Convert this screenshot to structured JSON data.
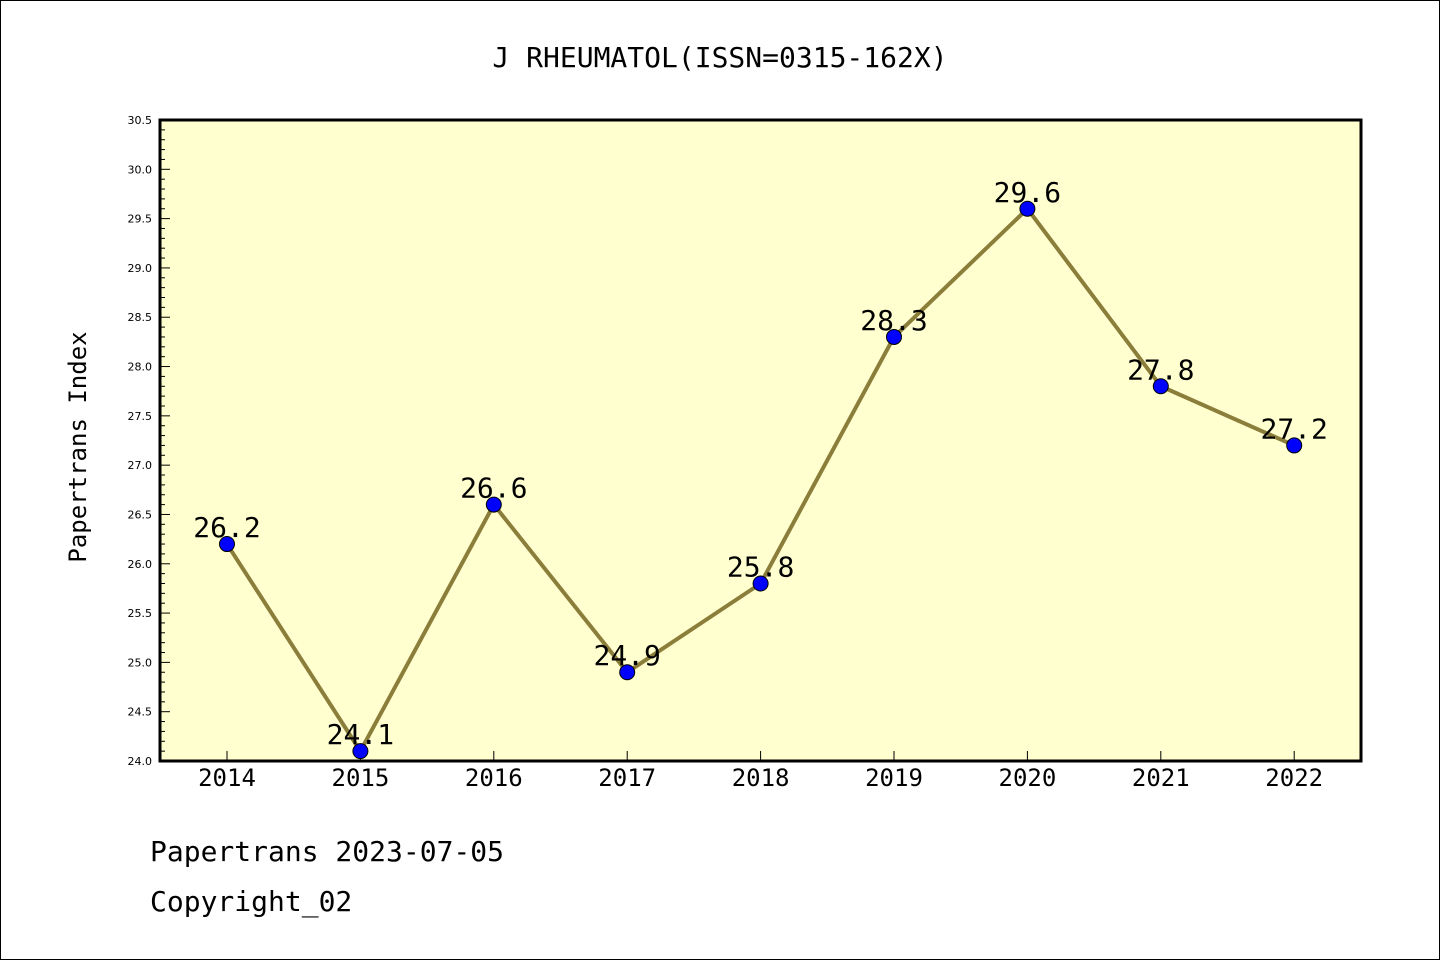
{
  "chart_data": {
    "type": "line",
    "title": "J RHEUMATOL(ISSN=0315-162X)",
    "xlabel": "",
    "ylabel": "Papertrans Index",
    "categories": [
      "2014",
      "2015",
      "2016",
      "2017",
      "2018",
      "2019",
      "2020",
      "2021",
      "2022"
    ],
    "series": [
      {
        "values": [
          26.2,
          24.1,
          26.6,
          24.9,
          25.8,
          28.3,
          29.6,
          27.8,
          27.2
        ],
        "data_labels": [
          "26.2",
          "24.1",
          "26.6",
          "24.9",
          "25.8",
          "28.3",
          "29.6",
          "27.8",
          "27.2"
        ]
      }
    ],
    "ylim": [
      24.0,
      30.5
    ],
    "yticks": [
      "24.0",
      "24.5",
      "25.0",
      "25.5",
      "26.0",
      "26.5",
      "27.0",
      "27.5",
      "28.0",
      "28.5",
      "29.0",
      "29.5",
      "30.0",
      "30.5"
    ],
    "grid": false,
    "legend": "none",
    "colors": {
      "plot_background": "#FFFFD0",
      "line": "#8B7D3A",
      "marker": "#0000FF"
    }
  },
  "footer": {
    "line1": "Papertrans 2023-07-05",
    "line2": "Copyright_02"
  }
}
